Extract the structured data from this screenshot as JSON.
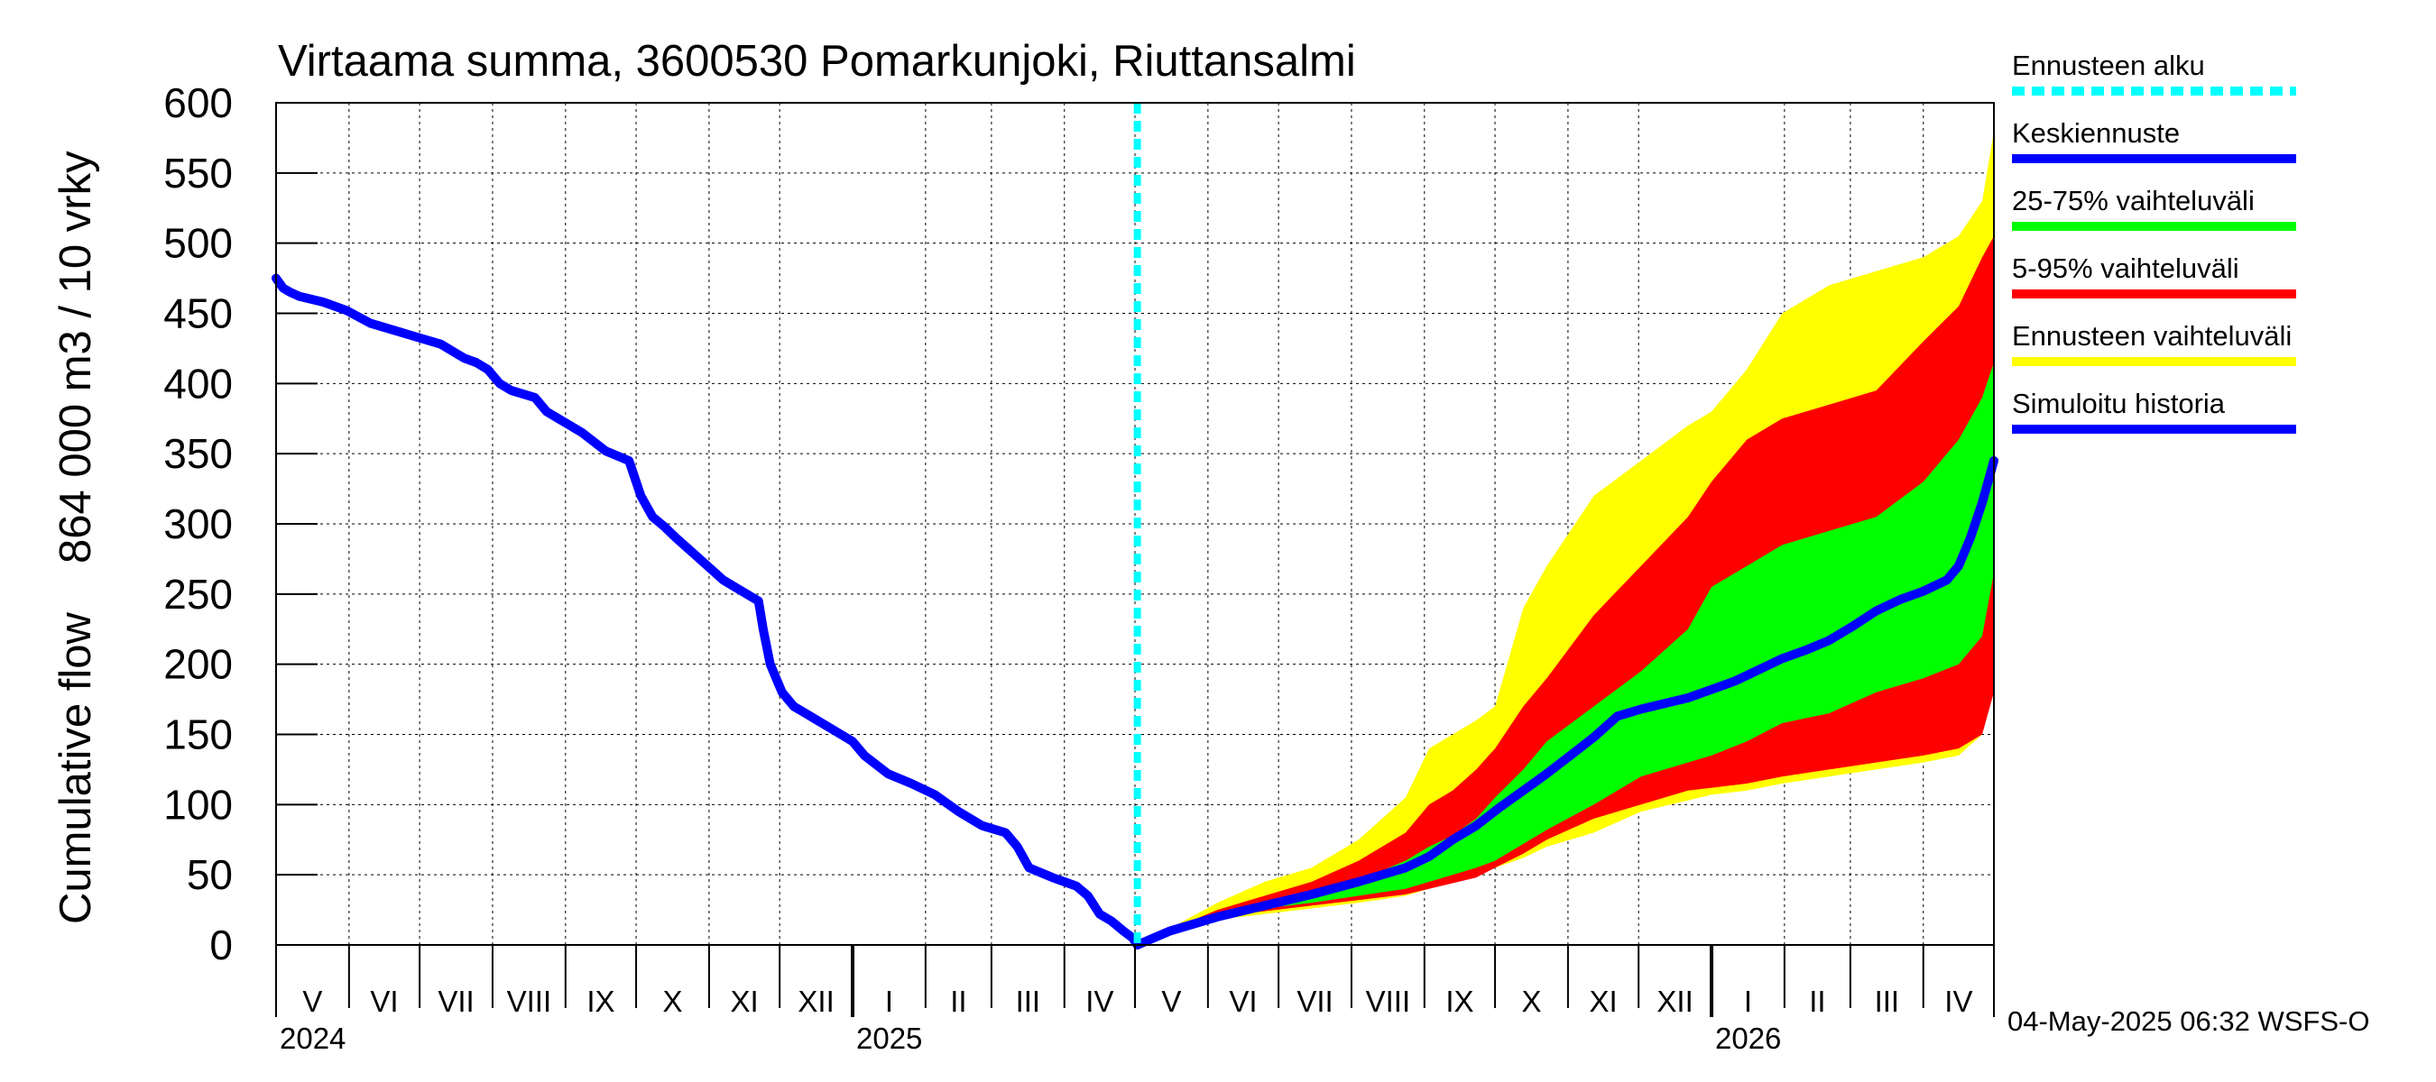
{
  "chart_data": {
    "type": "area",
    "title": "Virtaama summa, 3600530 Pomarkunjoki, Riuttansalmi",
    "ylabel_lines": [
      "Cumulative flow",
      "864 000 m3 / 10 vrky"
    ],
    "ylim": [
      0,
      600
    ],
    "yticks": [
      0,
      50,
      100,
      150,
      200,
      250,
      300,
      350,
      400,
      450,
      500,
      550,
      600
    ],
    "x_range_days": [
      0,
      730
    ],
    "forecast_start_day": 366,
    "months": [
      {
        "label": "V",
        "start": 0,
        "end": 31
      },
      {
        "label": "VI",
        "start": 31,
        "end": 61
      },
      {
        "label": "VII",
        "start": 61,
        "end": 92
      },
      {
        "label": "VIII",
        "start": 92,
        "end": 123
      },
      {
        "label": "IX",
        "start": 123,
        "end": 153
      },
      {
        "label": "X",
        "start": 153,
        "end": 184
      },
      {
        "label": "XI",
        "start": 184,
        "end": 214
      },
      {
        "label": "XII",
        "start": 214,
        "end": 245
      },
      {
        "label": "I",
        "start": 245,
        "end": 276
      },
      {
        "label": "II",
        "start": 276,
        "end": 304
      },
      {
        "label": "III",
        "start": 304,
        "end": 335
      },
      {
        "label": "IV",
        "start": 335,
        "end": 365
      },
      {
        "label": "V",
        "start": 365,
        "end": 396
      },
      {
        "label": "VI",
        "start": 396,
        "end": 426
      },
      {
        "label": "VII",
        "start": 426,
        "end": 457
      },
      {
        "label": "VIII",
        "start": 457,
        "end": 488
      },
      {
        "label": "IX",
        "start": 488,
        "end": 518
      },
      {
        "label": "X",
        "start": 518,
        "end": 549
      },
      {
        "label": "XI",
        "start": 549,
        "end": 579
      },
      {
        "label": "XII",
        "start": 579,
        "end": 610
      },
      {
        "label": "I",
        "start": 610,
        "end": 641
      },
      {
        "label": "II",
        "start": 641,
        "end": 669
      },
      {
        "label": "III",
        "start": 669,
        "end": 700
      },
      {
        "label": "IV",
        "start": 700,
        "end": 730
      }
    ],
    "years": [
      {
        "label": "2024",
        "day": 0
      },
      {
        "label": "2025",
        "day": 245
      },
      {
        "label": "2026",
        "day": 610
      }
    ],
    "year_boundaries": [
      245,
      610
    ],
    "series": [
      {
        "name": "Ennusteen vaihteluväli",
        "color": "#ffff00",
        "kind": "band",
        "days": [
          366,
          380,
          400,
          420,
          440,
          460,
          480,
          490,
          500,
          510,
          518,
          530,
          540,
          560,
          580,
          600,
          610,
          625,
          640,
          660,
          680,
          700,
          715,
          725,
          730
        ],
        "upper": [
          0,
          12,
          30,
          45,
          55,
          75,
          105,
          140,
          150,
          160,
          170,
          240,
          270,
          320,
          345,
          370,
          380,
          410,
          450,
          470,
          480,
          490,
          505,
          530,
          580
        ],
        "lower": [
          0,
          8,
          18,
          22,
          26,
          30,
          35,
          40,
          45,
          50,
          55,
          62,
          70,
          80,
          95,
          103,
          107,
          110,
          115,
          120,
          125,
          130,
          135,
          150,
          185
        ]
      },
      {
        "name": "5-95% vaihteluväli",
        "color": "#ff0000",
        "kind": "band",
        "days": [
          366,
          380,
          400,
          420,
          440,
          460,
          480,
          490,
          500,
          510,
          518,
          530,
          540,
          560,
          580,
          600,
          610,
          625,
          640,
          660,
          680,
          700,
          715,
          725,
          730
        ],
        "upper": [
          0,
          11,
          25,
          35,
          45,
          60,
          80,
          100,
          110,
          125,
          140,
          170,
          190,
          235,
          270,
          305,
          330,
          360,
          375,
          385,
          395,
          430,
          455,
          490,
          505
        ],
        "lower": [
          0,
          8,
          20,
          24,
          28,
          32,
          36,
          40,
          44,
          48,
          55,
          65,
          75,
          90,
          100,
          110,
          112,
          115,
          120,
          125,
          130,
          135,
          140,
          150,
          180
        ]
      },
      {
        "name": "25-75% vaihteluväli",
        "color": "#00ff00",
        "kind": "band",
        "days": [
          366,
          380,
          400,
          420,
          440,
          460,
          480,
          490,
          500,
          510,
          518,
          530,
          540,
          560,
          580,
          600,
          610,
          625,
          640,
          660,
          680,
          700,
          715,
          725,
          730
        ],
        "upper": [
          0,
          10,
          20,
          28,
          36,
          46,
          60,
          70,
          78,
          90,
          105,
          125,
          145,
          170,
          195,
          225,
          255,
          270,
          285,
          295,
          305,
          330,
          360,
          390,
          415
        ],
        "lower": [
          0,
          9,
          18,
          26,
          30,
          35,
          40,
          45,
          50,
          55,
          60,
          72,
          82,
          100,
          120,
          130,
          135,
          145,
          158,
          165,
          180,
          190,
          200,
          220,
          265
        ]
      },
      {
        "name": "Keskiennuste",
        "color": "#0000ff",
        "kind": "line",
        "days": [
          366,
          380,
          400,
          420,
          440,
          460,
          480,
          490,
          500,
          510,
          520,
          530,
          540,
          550,
          560,
          570,
          580,
          590,
          600,
          610,
          620,
          630,
          640,
          650,
          660,
          670,
          680,
          690,
          700,
          710,
          715,
          720,
          725,
          730
        ],
        "values": [
          0,
          10,
          20,
          28,
          36,
          45,
          55,
          63,
          75,
          85,
          98,
          110,
          122,
          135,
          148,
          163,
          168,
          172,
          176,
          182,
          188,
          196,
          204,
          210,
          217,
          227,
          238,
          246,
          252,
          260,
          270,
          290,
          315,
          345
        ]
      },
      {
        "name": "Simuloitu historia",
        "color": "#0000ff",
        "kind": "line",
        "days": [
          0,
          3,
          6,
          10,
          20,
          30,
          40,
          50,
          60,
          70,
          80,
          85,
          90,
          95,
          100,
          110,
          115,
          120,
          125,
          130,
          140,
          150,
          155,
          160,
          165,
          170,
          180,
          190,
          200,
          205,
          207,
          210,
          215,
          220,
          230,
          240,
          245,
          250,
          260,
          270,
          280,
          290,
          300,
          310,
          315,
          320,
          330,
          335,
          340,
          345,
          350,
          355,
          360,
          364,
          366
        ],
        "values": [
          475,
          468,
          465,
          462,
          458,
          452,
          443,
          438,
          433,
          428,
          418,
          415,
          410,
          400,
          395,
          390,
          380,
          375,
          370,
          365,
          352,
          345,
          320,
          305,
          298,
          290,
          275,
          260,
          250,
          245,
          225,
          200,
          180,
          170,
          160,
          150,
          145,
          135,
          122,
          115,
          107,
          95,
          85,
          80,
          70,
          55,
          48,
          45,
          42,
          35,
          22,
          17,
          10,
          5,
          0
        ]
      }
    ],
    "legend": [
      {
        "label": "Ennusteen alku",
        "color": "#00ffff",
        "style": "dotted"
      },
      {
        "label": "Keskiennuste",
        "color": "#0000ff",
        "style": "solid"
      },
      {
        "label": "25-75% vaihteluväli",
        "color": "#00ff00",
        "style": "solid"
      },
      {
        "label": "5-95% vaihteluväli",
        "color": "#ff0000",
        "style": "solid"
      },
      {
        "label": "Ennusteen vaihteluväli",
        "color": "#ffff00",
        "style": "solid"
      },
      {
        "label": "Simuloitu historia",
        "color": "#0000ff",
        "style": "solid"
      }
    ],
    "footer_timestamp": "04-May-2025 06:32 WSFS-O"
  }
}
